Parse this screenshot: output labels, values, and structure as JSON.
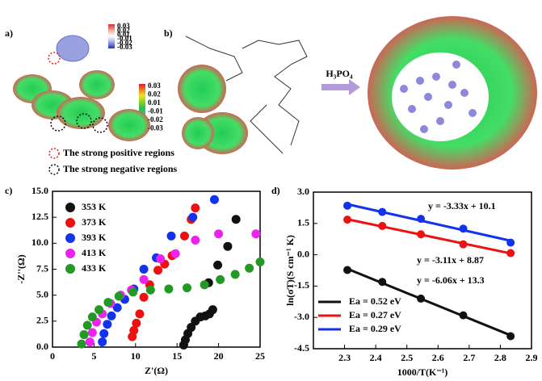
{
  "figure": {
    "panel_labels": [
      "a)",
      "b)",
      "c)",
      "d)"
    ],
    "colorbar_top_ticks": [
      "0.03",
      "0.02",
      "0.01",
      "-0.01",
      "-0.02",
      "-0.03"
    ],
    "colorbar_bottom_ticks": [
      "0.03",
      "0.02",
      "0.01",
      "-0.01",
      "-0.02",
      "-0.03"
    ],
    "region_legend": [
      "The strong positive regions",
      "The strong negative regions"
    ],
    "reagent": "H₃PO₄"
  },
  "chart_data": [
    {
      "type": "scatter",
      "xlabel": "Z'(Ω)",
      "ylabel": "-Z''(Ω)",
      "xlim": [
        0,
        25
      ],
      "xticks": [
        0,
        5,
        10,
        15,
        20,
        25
      ],
      "ylim": [
        0,
        15
      ],
      "yticks": [
        {
          "value": 0,
          "label": "0.0"
        },
        {
          "value": 2.5,
          "label": "2.5"
        },
        {
          "value": 5,
          "label": "5.0"
        },
        {
          "value": 7.5,
          "label": "7.5"
        },
        {
          "value": 10,
          "label": "10.0"
        },
        {
          "value": 12.5,
          "label": "12.5"
        },
        {
          "value": 15,
          "label": "15.0"
        }
      ],
      "legend": "upper left",
      "series": [
        {
          "name": "353 K",
          "color": "#111111",
          "x": [
            15.8,
            16.0,
            16.3,
            16.7,
            17.2,
            17.8,
            18.4,
            18.9,
            19.3,
            18.8,
            19.9,
            21.1,
            22.1
          ],
          "values": [
            0.2,
            0.7,
            1.3,
            1.9,
            2.5,
            2.9,
            3.0,
            3.2,
            3.6,
            6.2,
            7.9,
            9.7,
            12.3
          ]
        },
        {
          "name": "373 K",
          "color": "#ee1111",
          "x": [
            9.6,
            9.8,
            10.1,
            10.5,
            11.0,
            11.7,
            12.7,
            13.5,
            14.4,
            15.9,
            16.7,
            17.2
          ],
          "values": [
            1.0,
            1.6,
            2.3,
            3.2,
            4.8,
            6.0,
            7.4,
            8.0,
            8.8,
            10.7,
            12.3,
            13.4
          ]
        },
        {
          "name": "393 K",
          "color": "#1133ee",
          "x": [
            6.0,
            6.2,
            6.6,
            7.1,
            7.8,
            8.7,
            9.8,
            11.0,
            12.5,
            14.3,
            16.9,
            19.5
          ],
          "values": [
            0.5,
            1.3,
            2.2,
            3.0,
            3.8,
            4.6,
            5.6,
            7.5,
            8.6,
            10.7,
            12.5,
            14.2
          ]
        },
        {
          "name": "413 K",
          "color": "#ee22ee",
          "x": [
            4.5,
            4.8,
            5.3,
            6.0,
            7.0,
            8.2,
            9.5,
            11.0,
            13.0,
            14.8,
            17.2,
            20.0,
            24.5
          ],
          "values": [
            0.5,
            1.4,
            2.4,
            3.2,
            4.2,
            5.0,
            5.5,
            6.5,
            8.5,
            9.0,
            10.3,
            10.9,
            10.9
          ]
        },
        {
          "name": "433 K",
          "color": "#229922",
          "x": [
            3.5,
            3.8,
            4.2,
            4.8,
            5.6,
            6.7,
            8.0,
            9.7,
            11.8,
            14.0,
            16.2,
            18.3,
            20.2,
            22.0,
            23.7,
            25.0
          ],
          "values": [
            0.3,
            1.2,
            2.1,
            2.9,
            3.6,
            4.3,
            4.9,
            5.3,
            5.5,
            5.6,
            5.7,
            6.0,
            6.5,
            7.0,
            7.6,
            8.2
          ]
        }
      ]
    },
    {
      "type": "scatter",
      "xlabel": "1000/T(K⁻¹)",
      "ylabel": "ln(σT)(S cm⁻¹ K)",
      "xlim": [
        2.2,
        2.9
      ],
      "xticks": [
        2.3,
        2.4,
        2.5,
        2.6,
        2.7,
        2.8,
        2.9
      ],
      "ylim": [
        -4.5,
        3
      ],
      "yticks": [
        {
          "value": 3,
          "label": "3.0"
        },
        {
          "value": 1.5,
          "label": "1.5"
        },
        {
          "value": 0,
          "label": "0.0"
        },
        {
          "value": -1.5,
          "label": "-1.5"
        },
        {
          "value": -3,
          "label": "-3.0"
        },
        {
          "value": -4.5,
          "label": "-4.5"
        }
      ],
      "legend": "lower left",
      "fit": true,
      "series": [
        {
          "name": "Ea = 0.52 eV",
          "color": "#111111",
          "x": [
            2.309,
            2.421,
            2.545,
            2.681,
            2.833
          ],
          "values": [
            -0.73,
            -1.3,
            -2.1,
            -2.9,
            -3.9
          ]
        },
        {
          "name": "Ea = 0.27 eV",
          "color": "#ee1111",
          "x": [
            2.309,
            2.421,
            2.545,
            2.681,
            2.833
          ],
          "values": [
            1.68,
            1.38,
            0.98,
            0.5,
            0.08
          ]
        },
        {
          "name": "Ea = 0.29 eV",
          "color": "#1133ee",
          "x": [
            2.309,
            2.421,
            2.545,
            2.681,
            2.833
          ],
          "values": [
            2.35,
            2.05,
            1.72,
            1.25,
            0.58
          ]
        }
      ],
      "annotations": [
        "y = -3.33x + 10.1",
        "y = -3.11x + 8.87",
        "y = -6.06x + 13.3"
      ]
    }
  ]
}
